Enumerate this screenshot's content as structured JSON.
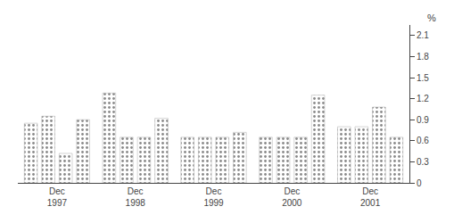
{
  "chart_data": {
    "type": "bar",
    "categories": [
      "Dec\n1997",
      "Dec\n1998",
      "Dec\n1999",
      "Dec\n2000",
      "Dec\n2001"
    ],
    "series": [
      {
        "color": "#ccccaa",
        "values": [
          0.85,
          1.28,
          0.65,
          0.65,
          0.8
        ]
      },
      {
        "color": "#ccccaa",
        "values": [
          0.95,
          0.65,
          0.65,
          0.65,
          0.8
        ]
      },
      {
        "color": "#ccccaa",
        "values": [
          0.42,
          0.65,
          0.65,
          0.65,
          1.08
        ]
      },
      {
        "color": "#ccccaa",
        "values": [
          0.9,
          0.92,
          0.72,
          1.25,
          0.65
        ]
      }
    ],
    "ylabel": "%",
    "ylim": [
      0,
      2.25
    ],
    "yticks": [
      0.0,
      0.3,
      0.6,
      0.9,
      1.2,
      1.5,
      1.8,
      2.1
    ],
    "grid": false
  }
}
